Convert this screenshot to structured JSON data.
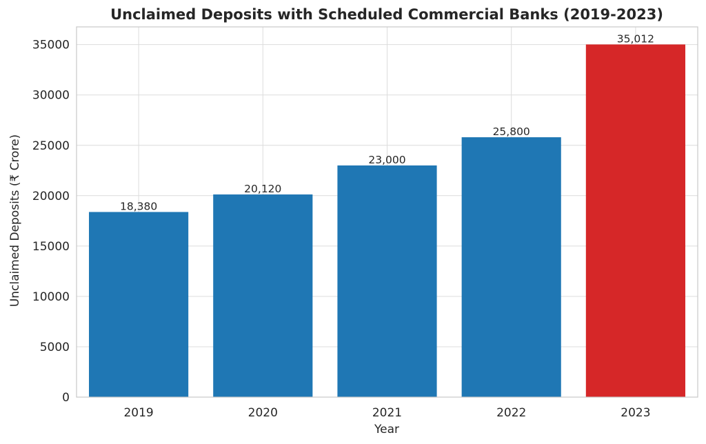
{
  "chart_data": {
    "type": "bar",
    "title": "Unclaimed Deposits with Scheduled Commercial Banks (2019-2023)",
    "xlabel": "Year",
    "ylabel": "Unclaimed Deposits (₹ Crore)",
    "categories": [
      "2019",
      "2020",
      "2021",
      "2022",
      "2023"
    ],
    "values": [
      18380,
      20120,
      23000,
      25800,
      35012
    ],
    "data_labels": [
      "18,380",
      "20,120",
      "23,000",
      "25,800",
      "35,012"
    ],
    "colors": [
      "#1f77b4",
      "#1f77b4",
      "#1f77b4",
      "#1f77b4",
      "#d62728"
    ],
    "ylim": [
      0,
      36756
    ],
    "yticks": [
      0,
      5000,
      10000,
      15000,
      20000,
      25000,
      30000,
      35000
    ],
    "ytick_labels": [
      "0",
      "5000",
      "10000",
      "15000",
      "20000",
      "25000",
      "30000",
      "35000"
    ],
    "grid": true,
    "legend": "none"
  }
}
